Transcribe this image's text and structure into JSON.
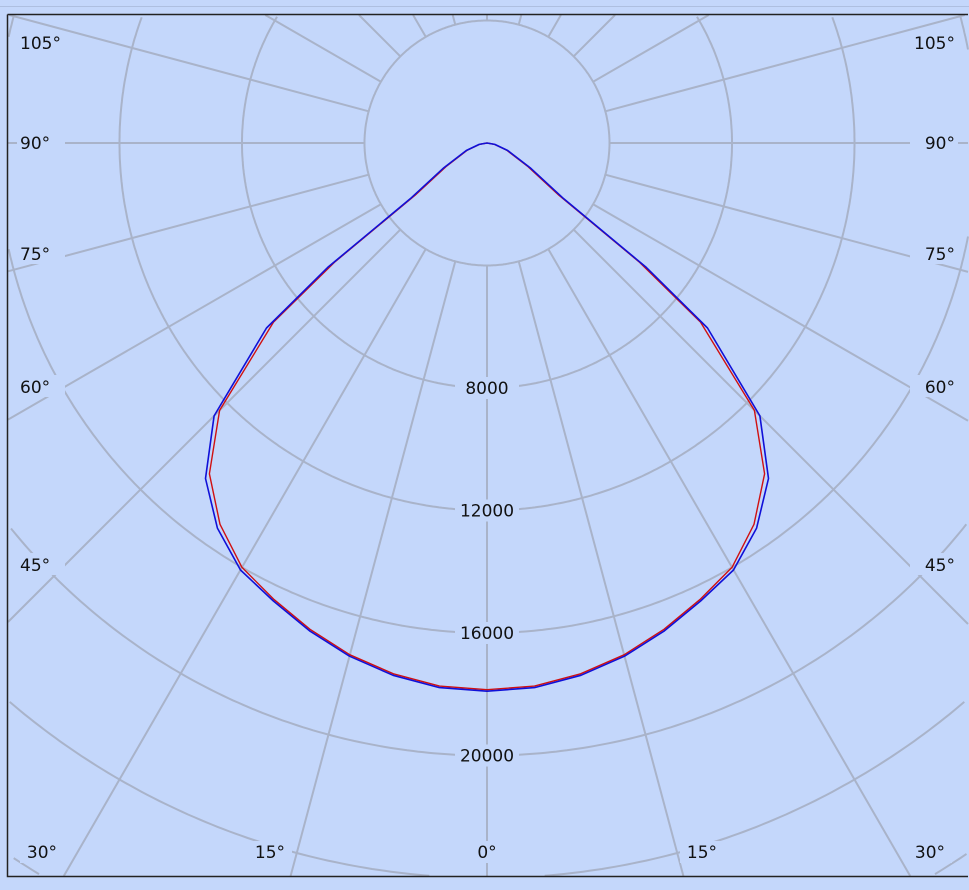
{
  "chart_data": {
    "type": "polar-line",
    "radial_ticks": [
      "8000",
      "12000",
      "16000",
      "20000"
    ],
    "radial_values": [
      4000,
      8000,
      12000,
      16000,
      20000,
      24000,
      28000
    ],
    "angle_labels_bottom": [
      "30°",
      "15°",
      "0°",
      "15°",
      "30°"
    ],
    "angle_labels_side": [
      "105°",
      "90°",
      "75°",
      "60°",
      "45°"
    ],
    "grid": true,
    "angle_step_deg": 15,
    "symmetric": true,
    "angles_deg": [
      0,
      5,
      10,
      15,
      20,
      25,
      30,
      35,
      40,
      45,
      50,
      52,
      54,
      60,
      70,
      80,
      90
    ],
    "series": [
      {
        "color": "#d01010",
        "values": [
          17850,
          17800,
          17600,
          17300,
          16900,
          16450,
          16000,
          15200,
          14100,
          12350,
          9100,
          6300,
          2900,
          1550,
          680,
          240,
          0
        ]
      },
      {
        "color": "#1010d8",
        "values": [
          17900,
          17850,
          17650,
          17350,
          16950,
          16500,
          16100,
          15350,
          14300,
          12600,
          9400,
          6600,
          3100,
          1650,
          720,
          260,
          0
        ]
      }
    ],
    "colors": {
      "background": "#c4d7fb",
      "grid": "#a9b3c9",
      "border": "#222222"
    }
  }
}
